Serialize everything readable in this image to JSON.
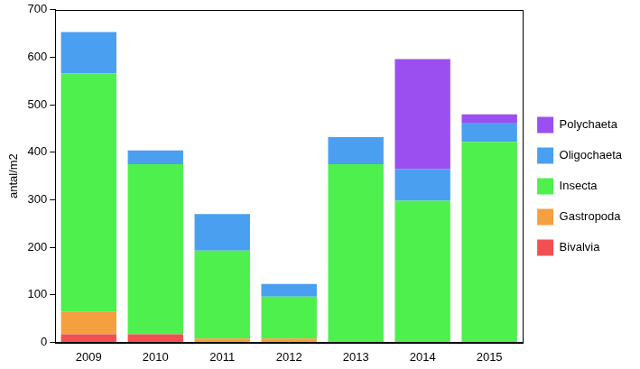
{
  "chart_data": {
    "type": "bar",
    "stacked": true,
    "grid": false,
    "legend": "right",
    "y_label": "antal/m2",
    "categories": [
      "2009",
      "2010",
      "2011",
      "2012",
      "2013",
      "2014",
      "2015"
    ],
    "series": [
      {
        "name": "Bivalvia",
        "color": "#f25050",
        "values": [
          17,
          17,
          0,
          0,
          0,
          0,
          0
        ]
      },
      {
        "name": "Gastropoda",
        "color": "#f5a040",
        "values": [
          48,
          0,
          8,
          8,
          0,
          0,
          0
        ]
      },
      {
        "name": "Insecta",
        "color": "#4df04d",
        "values": [
          501,
          358,
          185,
          88,
          375,
          298,
          422
        ]
      },
      {
        "name": "Oligochaeta",
        "color": "#4a9ff0",
        "values": [
          87,
          29,
          77,
          27,
          57,
          67,
          40
        ]
      },
      {
        "name": "Polychaeta",
        "color": "#9b4ff0",
        "values": [
          0,
          0,
          0,
          0,
          0,
          231,
          18
        ]
      }
    ],
    "ylim": [
      0,
      700
    ],
    "yticks": [
      0,
      100,
      200,
      300,
      400,
      500,
      600,
      700
    ]
  }
}
